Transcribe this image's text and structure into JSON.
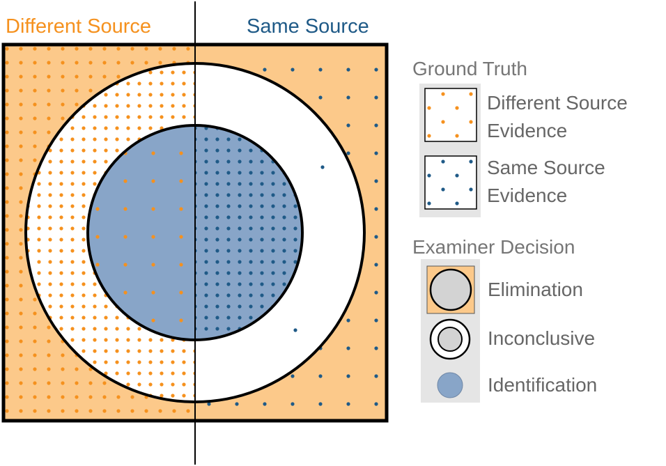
{
  "headers": {
    "different_source": "Different Source",
    "same_source": "Same Source"
  },
  "legend": {
    "ground_truth": {
      "title": "Ground Truth",
      "items": [
        {
          "line1": "Different Source",
          "line2": "Evidence",
          "dot_color": "#f5911e"
        },
        {
          "line1": "Same Source",
          "line2": "Evidence",
          "dot_color": "#1f5a87"
        }
      ]
    },
    "examiner_decision": {
      "title": "Examiner Decision",
      "items": [
        {
          "label": "Elimination"
        },
        {
          "label": "Inconclusive"
        },
        {
          "label": "Identification"
        }
      ]
    }
  },
  "colors": {
    "different_source": "#f5911e",
    "same_source": "#1f5a87",
    "elimination_fill": "#fcc98a",
    "identification_fill": "#88a5c8",
    "inconclusive_fill": "#ffffff",
    "legend_circle_fill": "#d3d3d3",
    "legend_background": "#e5e5e5"
  }
}
